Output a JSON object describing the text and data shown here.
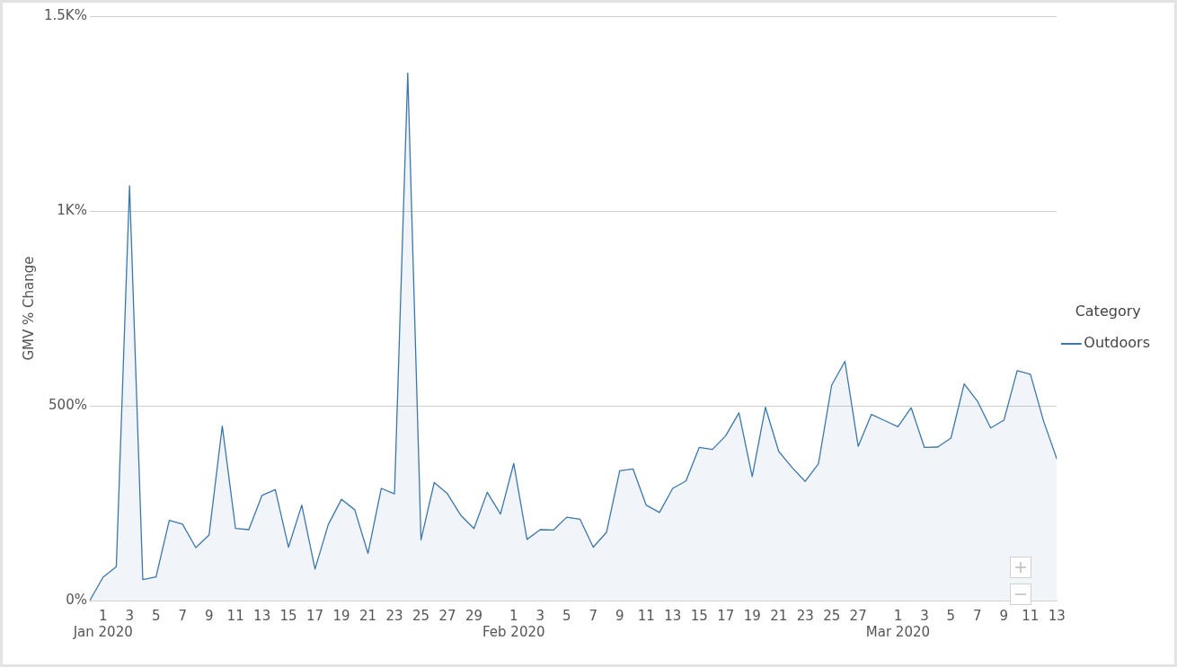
{
  "chart_data": {
    "type": "area",
    "ylabel": "GMV % Change",
    "legend_title": "Category",
    "legend": "right",
    "grid": "y",
    "marker": "none",
    "x": [
      "2019-12-31",
      "2020-01-01",
      "2020-01-02",
      "2020-01-03",
      "2020-01-04",
      "2020-01-05",
      "2020-01-06",
      "2020-01-07",
      "2020-01-08",
      "2020-01-09",
      "2020-01-10",
      "2020-01-11",
      "2020-01-12",
      "2020-01-13",
      "2020-01-14",
      "2020-01-15",
      "2020-01-16",
      "2020-01-17",
      "2020-01-18",
      "2020-01-19",
      "2020-01-20",
      "2020-01-21",
      "2020-01-22",
      "2020-01-23",
      "2020-01-24",
      "2020-01-25",
      "2020-01-26",
      "2020-01-27",
      "2020-01-28",
      "2020-01-29",
      "2020-01-30",
      "2020-01-31",
      "2020-02-01",
      "2020-02-02",
      "2020-02-03",
      "2020-02-04",
      "2020-02-05",
      "2020-02-06",
      "2020-02-07",
      "2020-02-08",
      "2020-02-09",
      "2020-02-10",
      "2020-02-11",
      "2020-02-12",
      "2020-02-13",
      "2020-02-14",
      "2020-02-15",
      "2020-02-16",
      "2020-02-17",
      "2020-02-18",
      "2020-02-19",
      "2020-02-20",
      "2020-02-21",
      "2020-02-22",
      "2020-02-23",
      "2020-02-24",
      "2020-02-25",
      "2020-02-26",
      "2020-02-27",
      "2020-02-28",
      "2020-02-29",
      "2020-03-01",
      "2020-03-02",
      "2020-03-03",
      "2020-03-04",
      "2020-03-05",
      "2020-03-06",
      "2020-03-07",
      "2020-03-08",
      "2020-03-09",
      "2020-03-10",
      "2020-03-11",
      "2020-03-12",
      "2020-03-13"
    ],
    "series": [
      {
        "name": "Outdoors",
        "color": "#3a77b0",
        "values": [
          0,
          60,
          87,
          1065,
          54,
          61,
          206,
          196,
          136,
          168,
          448,
          185,
          182,
          270,
          285,
          137,
          245,
          81,
          195,
          260,
          233,
          121,
          288,
          274,
          1354,
          156,
          303,
          274,
          219,
          185,
          278,
          222,
          352,
          157,
          182,
          181,
          214,
          209,
          137,
          175,
          333,
          338,
          245,
          226,
          288,
          307,
          393,
          388,
          423,
          482,
          318,
          496,
          383,
          342,
          306,
          351,
          553,
          614,
          396,
          478,
          462,
          446,
          495,
          393,
          394,
          417,
          556,
          512,
          443,
          463,
          590,
          581,
          460,
          363
        ]
      }
    ],
    "xlim": [
      "2019-12-31",
      "2020-03-13"
    ],
    "xticks": [
      {
        "value": "2020-01-01",
        "label": "1\nJan 2020"
      },
      {
        "value": "2020-01-03",
        "label": "3"
      },
      {
        "value": "2020-01-05",
        "label": "5"
      },
      {
        "value": "2020-01-07",
        "label": "7"
      },
      {
        "value": "2020-01-09",
        "label": "9"
      },
      {
        "value": "2020-01-11",
        "label": "11"
      },
      {
        "value": "2020-01-13",
        "label": "13"
      },
      {
        "value": "2020-01-15",
        "label": "15"
      },
      {
        "value": "2020-01-17",
        "label": "17"
      },
      {
        "value": "2020-01-19",
        "label": "19"
      },
      {
        "value": "2020-01-21",
        "label": "21"
      },
      {
        "value": "2020-01-23",
        "label": "23"
      },
      {
        "value": "2020-01-25",
        "label": "25"
      },
      {
        "value": "2020-01-27",
        "label": "27"
      },
      {
        "value": "2020-01-29",
        "label": "29"
      },
      {
        "value": "2020-02-01",
        "label": "1\nFeb 2020"
      },
      {
        "value": "2020-02-03",
        "label": "3"
      },
      {
        "value": "2020-02-05",
        "label": "5"
      },
      {
        "value": "2020-02-07",
        "label": "7"
      },
      {
        "value": "2020-02-09",
        "label": "9"
      },
      {
        "value": "2020-02-11",
        "label": "11"
      },
      {
        "value": "2020-02-13",
        "label": "13"
      },
      {
        "value": "2020-02-15",
        "label": "15"
      },
      {
        "value": "2020-02-17",
        "label": "17"
      },
      {
        "value": "2020-02-19",
        "label": "19"
      },
      {
        "value": "2020-02-21",
        "label": "21"
      },
      {
        "value": "2020-02-23",
        "label": "23"
      },
      {
        "value": "2020-02-25",
        "label": "25"
      },
      {
        "value": "2020-02-27",
        "label": "27"
      },
      {
        "value": "2020-03-01",
        "label": "1\nMar 2020"
      },
      {
        "value": "2020-03-03",
        "label": "3"
      },
      {
        "value": "2020-03-05",
        "label": "5"
      },
      {
        "value": "2020-03-07",
        "label": "7"
      },
      {
        "value": "2020-03-09",
        "label": "9"
      },
      {
        "value": "2020-03-11",
        "label": "11"
      },
      {
        "value": "2020-03-13",
        "label": "13"
      }
    ],
    "ylim": [
      0,
      1500
    ],
    "yticks": [
      {
        "value": 0,
        "label": "0%"
      },
      {
        "value": 500,
        "label": "500%"
      },
      {
        "value": 1000,
        "label": "1K%"
      },
      {
        "value": 1500,
        "label": "1.5K%"
      }
    ]
  }
}
